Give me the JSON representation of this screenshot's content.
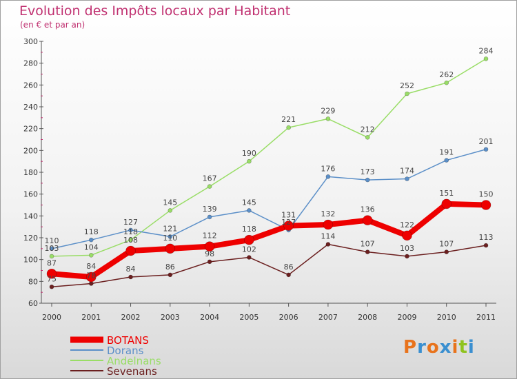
{
  "header": {
    "title": "Evolution des Impôts locaux par Habitant",
    "subtitle": "(en € et par an)"
  },
  "logo": {
    "text": "Proxiti",
    "colors": [
      "#e8731c",
      "#3a8fd0",
      "#e8731c",
      "#3a8fd0",
      "#e8731c",
      "#8fc31f",
      "#3a8fd0"
    ]
  },
  "chart_data": {
    "type": "line",
    "title": "Evolution des Impôts locaux par Habitant",
    "subtitle": "(en € et par an)",
    "xlabel": "",
    "ylabel": "",
    "ylim": [
      60,
      300
    ],
    "yticks": [
      60,
      80,
      100,
      120,
      140,
      160,
      180,
      200,
      220,
      240,
      260,
      280,
      300
    ],
    "grid": false,
    "legend_position": "bottom-left",
    "categories": [
      "2000",
      "2001",
      "2002",
      "2003",
      "2004",
      "2005",
      "2006",
      "2007",
      "2008",
      "2009",
      "2010",
      "2011"
    ],
    "series": [
      {
        "name": "Sevenans",
        "color": "#6b1f1f",
        "values": [
          75,
          78,
          84,
          86,
          98,
          102,
          86,
          114,
          107,
          103,
          107,
          113
        ]
      },
      {
        "name": "Andelnans",
        "color": "#99dd66",
        "values": [
          103,
          104,
          118,
          145,
          167,
          190,
          221,
          229,
          212,
          252,
          262,
          284
        ]
      },
      {
        "name": "Dorans",
        "color": "#5b8fc8",
        "values": [
          110,
          118,
          127,
          121,
          139,
          145,
          127,
          176,
          173,
          174,
          191,
          201
        ]
      },
      {
        "name": "BOTANS",
        "color": "#ee0000",
        "values": [
          87,
          84,
          108,
          110,
          112,
          118,
          131,
          132,
          136,
          122,
          151,
          150
        ]
      }
    ],
    "legend": [
      "BOTANS",
      "Dorans",
      "Andelnans",
      "Sevenans"
    ]
  }
}
